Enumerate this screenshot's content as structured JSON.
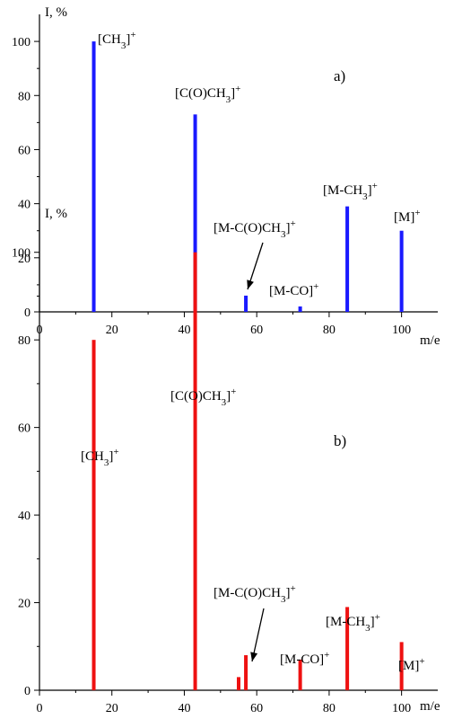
{
  "chart_data": [
    {
      "type": "bar",
      "panel_label": "a)",
      "xlabel": "m/e",
      "ylabel": "I, %",
      "xlim": [
        0,
        110
      ],
      "ylim": [
        0,
        110
      ],
      "xticks": [
        0,
        20,
        40,
        60,
        80,
        100
      ],
      "yticks": [
        0,
        20,
        40,
        60,
        80,
        100
      ],
      "bar_color": "#1a1aff",
      "series": [
        {
          "x": [
            15,
            43,
            57,
            72,
            85,
            100
          ],
          "values": [
            100,
            73,
            6,
            2,
            39,
            30
          ]
        }
      ],
      "annotations": [
        {
          "base": "[CH",
          "sub": "3",
          "close": "]",
          "sup": "+",
          "x": 15,
          "y": 100
        },
        {
          "base": "[C(O)CH",
          "sub": "3",
          "close": "]",
          "sup": "+",
          "x": 43,
          "y": 73
        },
        {
          "base": "[M-C(O)CH",
          "sub": "3",
          "close": "]",
          "sup": "+",
          "x": 57,
          "y": 6,
          "arrow": true
        },
        {
          "base": "[M-CO",
          "sub": "",
          "close": "]",
          "sup": "+",
          "x": 72,
          "y": 2
        },
        {
          "base": "[M-CH",
          "sub": "3",
          "close": "]",
          "sup": "+",
          "x": 85,
          "y": 39
        },
        {
          "base": "[M",
          "sub": "",
          "close": "]",
          "sup": "+",
          "x": 100,
          "y": 30
        }
      ]
    },
    {
      "type": "bar",
      "panel_label": "b)",
      "xlabel": "m/e",
      "ylabel": "I, %",
      "xlim": [
        0,
        110
      ],
      "ylim": [
        0,
        110
      ],
      "xticks": [
        0,
        20,
        40,
        60,
        80,
        100
      ],
      "yticks": [
        0,
        20,
        40,
        60,
        80,
        100
      ],
      "bar_color": "#ee1111",
      "series": [
        {
          "x": [
            15,
            43,
            55,
            57,
            72,
            85,
            100
          ],
          "values": [
            80,
            100,
            3,
            8,
            7,
            19,
            11
          ]
        }
      ],
      "annotations": [
        {
          "base": "[CH",
          "sub": "3",
          "close": "]",
          "sup": "+",
          "x": 15,
          "y": 80
        },
        {
          "base": "[C(O)CH",
          "sub": "3",
          "close": "]",
          "sup": "+",
          "x": 43,
          "y": 100
        },
        {
          "base": "[M-C(O)CH",
          "sub": "3",
          "close": "]",
          "sup": "+",
          "x": 57,
          "y": 8,
          "arrow": true
        },
        {
          "base": "[M-CO",
          "sub": "",
          "close": "]",
          "sup": "+",
          "x": 72,
          "y": 7
        },
        {
          "base": "[M-CH",
          "sub": "3",
          "close": "]",
          "sup": "+",
          "x": 85,
          "y": 19
        },
        {
          "base": "[M",
          "sub": "",
          "close": "]",
          "sup": "+",
          "x": 100,
          "y": 11
        }
      ]
    }
  ]
}
